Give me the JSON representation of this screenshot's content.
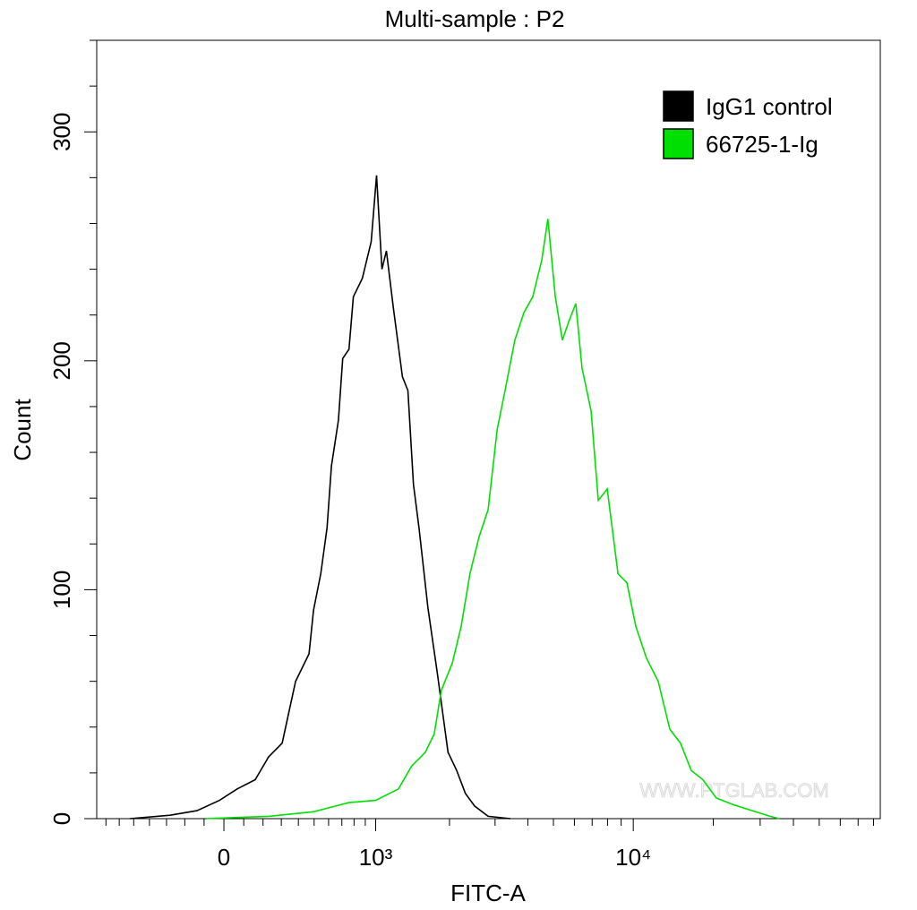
{
  "chart_data": {
    "type": "histogram-overlay",
    "title": "Multi-sample : P2",
    "x_label": "FITC-A",
    "y_label": "Count",
    "x_scale": "logicle",
    "xlim": [
      -775,
      84800
    ],
    "ylim": [
      0,
      340
    ],
    "xticks": [
      0,
      {
        "value": 1000,
        "label": "10³"
      },
      {
        "value": 10000,
        "label": "10⁴"
      }
    ],
    "xminorticks": [
      -700,
      -600,
      -500,
      -400,
      -300,
      -200,
      -100,
      100,
      200,
      300,
      400,
      500,
      600,
      700,
      800,
      900,
      2000,
      3000,
      4000,
      5000,
      6000,
      7000,
      8000,
      9000,
      20000,
      30000,
      40000,
      50000,
      60000,
      70000,
      80000
    ],
    "yticks": [
      0,
      100,
      200,
      300
    ],
    "yminorticks": [
      20,
      40,
      60,
      80,
      120,
      140,
      160,
      180,
      220,
      240,
      260,
      280,
      320,
      340
    ],
    "legend_position": "upper right",
    "watermark": "WWW.PTGLAB.COM",
    "series": [
      {
        "name": "IgG1 control",
        "color": "#000000",
        "x": [
          -525,
          -280,
          -136,
          -22,
          67,
          159,
          230,
          305,
          383,
          467,
          496,
          545,
          589,
          621,
          673,
          707,
          757,
          794,
          873,
          956,
          1009,
          1064,
          1112,
          1190,
          1297,
          1366,
          1438,
          1514,
          1645,
          1789,
          1974,
          2134,
          2307,
          2503,
          2822,
          3434
        ],
        "values": [
          0,
          1.5,
          3.5,
          8,
          13,
          17,
          27,
          33,
          60,
          72,
          91,
          107,
          127,
          154,
          174,
          201,
          205,
          228,
          236,
          252,
          281,
          240,
          248,
          223,
          193,
          187,
          146,
          127,
          92,
          64,
          29,
          21,
          11,
          5.5,
          1,
          0
        ]
      },
      {
        "name": "66725-1-Ig",
        "color": "#00e000",
        "x": [
          -90,
          230,
          496,
          757,
          1000,
          1249,
          1415,
          1606,
          1742,
          1858,
          2052,
          2221,
          2402,
          2604,
          2822,
          3057,
          3302,
          3570,
          3864,
          4174,
          4517,
          4763,
          5081,
          5406,
          5707,
          6073,
          6409,
          6937,
          7383,
          7981,
          8758,
          9466,
          10225,
          11223,
          12412,
          13729,
          15057,
          16524,
          18270,
          20532,
          23954,
          28014,
          32712,
          35380
        ],
        "values": [
          0,
          1,
          3,
          7,
          8,
          13,
          23,
          29,
          37,
          56,
          68,
          84,
          107,
          123,
          135,
          170,
          189,
          209,
          221,
          228,
          244,
          262,
          228,
          209,
          217,
          225,
          197,
          178,
          139,
          144,
          107,
          103,
          84,
          70,
          60,
          39,
          33,
          21,
          17,
          9,
          6,
          3.5,
          1,
          0
        ]
      }
    ]
  }
}
